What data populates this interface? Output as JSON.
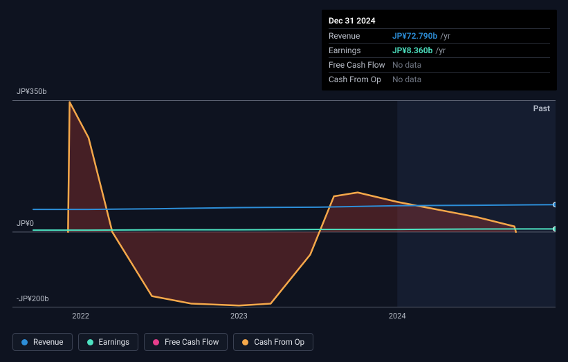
{
  "chart": {
    "type": "area-line",
    "background_color": "#0e1320",
    "past_region_bg": "rgba(45,60,95,0.25)",
    "past_label": "Past",
    "grid_color": "#2a3042",
    "axis_color": "#5a6070",
    "font_color": "#b8bdc7",
    "label_fontsize": 11,
    "x_axis": {
      "start_year": 2021.7,
      "end_year": 2025.0,
      "ticks": [
        {
          "year": 2022,
          "label": "2022"
        },
        {
          "year": 2023,
          "label": "2023"
        },
        {
          "year": 2024,
          "label": "2024"
        }
      ]
    },
    "y_axis": {
      "min": -200,
      "max": 350,
      "ticks": [
        {
          "value": 350,
          "label": "JP¥350b"
        },
        {
          "value": 0,
          "label": "JP¥0"
        },
        {
          "value": -200,
          "label": "-JP¥200b"
        }
      ]
    },
    "past_divider_year": 2024.0,
    "series": [
      {
        "name": "Revenue",
        "color": "#2d8ed8",
        "fill": "none",
        "line_width": 2,
        "visible": true,
        "marker_at_end": true,
        "points": [
          {
            "x": 2021.7,
            "y": 60
          },
          {
            "x": 2022.0,
            "y": 60
          },
          {
            "x": 2022.5,
            "y": 62
          },
          {
            "x": 2023.0,
            "y": 65
          },
          {
            "x": 2023.5,
            "y": 66
          },
          {
            "x": 2024.0,
            "y": 70
          },
          {
            "x": 2024.5,
            "y": 71
          },
          {
            "x": 2025.0,
            "y": 72.79
          }
        ]
      },
      {
        "name": "Earnings",
        "color": "#4de2c1",
        "fill": "none",
        "line_width": 2,
        "visible": true,
        "marker_at_end": true,
        "points": [
          {
            "x": 2021.7,
            "y": 5
          },
          {
            "x": 2022.0,
            "y": 5
          },
          {
            "x": 2022.5,
            "y": 6
          },
          {
            "x": 2023.0,
            "y": 6
          },
          {
            "x": 2023.5,
            "y": 7
          },
          {
            "x": 2024.0,
            "y": 7
          },
          {
            "x": 2024.5,
            "y": 8
          },
          {
            "x": 2025.0,
            "y": 8.36
          }
        ]
      },
      {
        "name": "Free Cash Flow",
        "color": "#e83e8c",
        "fill": "rgba(232,62,140,0.25)",
        "line_width": 2,
        "visible": false,
        "points": []
      },
      {
        "name": "Cash From Op",
        "color": "#f5a84a",
        "fill": "rgba(200,60,50,0.30)",
        "line_width": 2.5,
        "visible": true,
        "marker_at_end": false,
        "points": [
          {
            "x": 2021.92,
            "y": 0
          },
          {
            "x": 2021.93,
            "y": 345
          },
          {
            "x": 2022.05,
            "y": 250
          },
          {
            "x": 2022.2,
            "y": 0
          },
          {
            "x": 2022.45,
            "y": -170
          },
          {
            "x": 2022.7,
            "y": -190
          },
          {
            "x": 2023.0,
            "y": -195
          },
          {
            "x": 2023.2,
            "y": -190
          },
          {
            "x": 2023.45,
            "y": -60
          },
          {
            "x": 2023.6,
            "y": 95
          },
          {
            "x": 2023.75,
            "y": 105
          },
          {
            "x": 2024.0,
            "y": 80
          },
          {
            "x": 2024.5,
            "y": 40
          },
          {
            "x": 2024.74,
            "y": 15
          },
          {
            "x": 2024.75,
            "y": 0
          }
        ]
      }
    ]
  },
  "tooltip": {
    "title": "Dec 31 2024",
    "rows": [
      {
        "label": "Revenue",
        "value": "JP¥72.790b",
        "suffix": "/yr",
        "value_color": "#2d8ed8"
      },
      {
        "label": "Earnings",
        "value": "JP¥8.360b",
        "suffix": "/yr",
        "value_color": "#4de2c1"
      },
      {
        "label": "Free Cash Flow",
        "nodata": "No data"
      },
      {
        "label": "Cash From Op",
        "nodata": "No data"
      }
    ]
  },
  "legend": {
    "items": [
      {
        "label": "Revenue",
        "color": "#2d8ed8"
      },
      {
        "label": "Earnings",
        "color": "#4de2c1"
      },
      {
        "label": "Free Cash Flow",
        "color": "#e83e8c"
      },
      {
        "label": "Cash From Op",
        "color": "#f5a84a"
      }
    ]
  }
}
